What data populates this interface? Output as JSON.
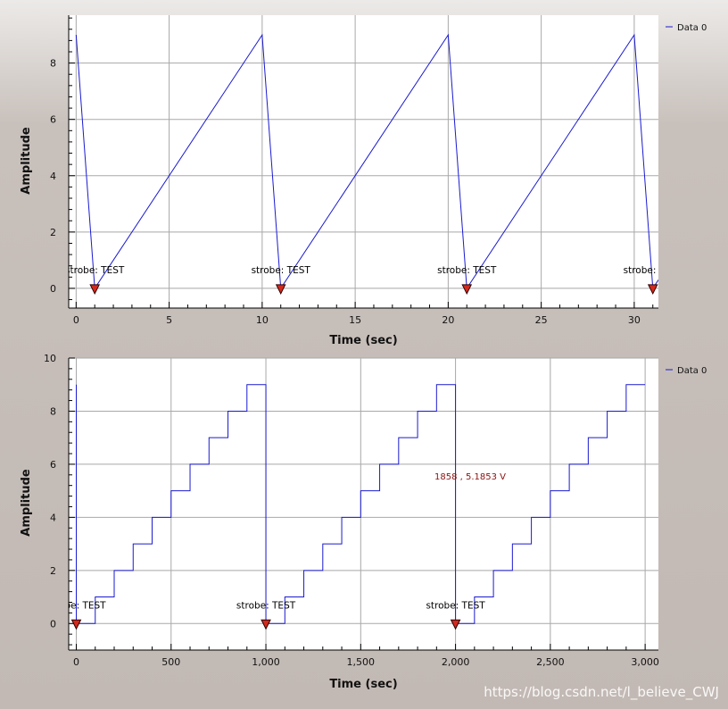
{
  "chart_data": [
    {
      "type": "line",
      "xlabel": "Time (sec)",
      "ylabel": "Amplitude",
      "xlim": [
        -0.4,
        31.3
      ],
      "ylim": [
        -0.7,
        9.7
      ],
      "xticks": [
        0,
        5,
        10,
        15,
        20,
        25,
        30
      ],
      "xtick_labels": [
        "0",
        "5",
        "10",
        "15",
        "20",
        "25",
        "30"
      ],
      "yticks": [
        0,
        2,
        4,
        6,
        8
      ],
      "ytick_labels": [
        "0",
        "2",
        "4",
        "6",
        "8"
      ],
      "grid": true,
      "legend_position": "right",
      "series": [
        {
          "name": "Data 0",
          "color": "#1a1ad0",
          "x": [
            0,
            1,
            10,
            11,
            20,
            21,
            30,
            31,
            31.3
          ],
          "y": [
            9,
            0,
            9,
            0,
            9,
            0,
            9,
            0,
            0.3
          ]
        }
      ],
      "tags": [
        {
          "x": 1,
          "y": 0,
          "label": "strobe: TEST"
        },
        {
          "x": 11,
          "y": 0,
          "label": "strobe: TEST"
        },
        {
          "x": 21,
          "y": 0,
          "label": "strobe: TEST"
        },
        {
          "x": 31,
          "y": 0,
          "label": "strobe: TEST"
        }
      ]
    },
    {
      "type": "line",
      "xlabel": "Time (sec)",
      "ylabel": "Amplitude",
      "xlim": [
        -40,
        3070
      ],
      "ylim": [
        -1.0,
        10.0
      ],
      "xticks": [
        0,
        500,
        1000,
        1500,
        2000,
        2500,
        3000
      ],
      "xtick_labels": [
        "0",
        "500",
        "1,000",
        "1,500",
        "2,000",
        "2,500",
        "3,000"
      ],
      "yticks": [
        0,
        2,
        4,
        6,
        8,
        10
      ],
      "ytick_labels": [
        "0",
        "2",
        "4",
        "6",
        "8",
        "10"
      ],
      "grid": true,
      "legend_position": "right",
      "series": [
        {
          "name": "Data 0",
          "color": "#1a1ad0",
          "step_period": 1000,
          "step_width": 100,
          "levels": [
            0,
            1,
            2,
            3,
            4,
            5,
            6,
            7,
            8,
            9
          ],
          "x_end": 3000
        }
      ],
      "tags": [
        {
          "x": 0,
          "y": 0,
          "label": "strobe: TEST"
        },
        {
          "x": 1000,
          "y": 0,
          "label": "strobe: TEST"
        },
        {
          "x": 2000,
          "y": 0,
          "label": "strobe: TEST"
        }
      ],
      "cursor_readout": "1858 , 5.1853 V"
    }
  ],
  "watermark": "https://blog.csdn.net/l_believe_CWJ"
}
